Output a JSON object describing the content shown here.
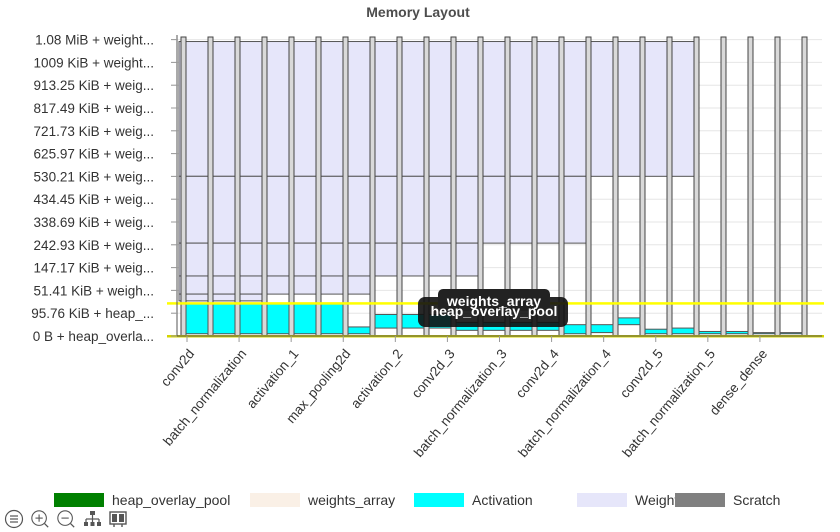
{
  "chart_data": {
    "type": "bar",
    "title": "Memory Layout",
    "y_tick_labels": [
      "0 B + heap_overla...",
      "95.76 KiB + heap_...",
      "51.41 KiB + weigh...",
      "147.17 KiB + weig...",
      "242.93 KiB + weig...",
      "338.69 KiB + weig...",
      "434.45 KiB + weig...",
      "530.21 KiB + weig...",
      "625.97 KiB + weig...",
      "721.73 KiB + weig...",
      "817.49 KiB + weig...",
      "913.25 KiB + weig...",
      "1009 KiB + weight...",
      "1.08 MiB + weight..."
    ],
    "x_tick_labels": [
      "conv2d",
      "batch_normalization",
      "activation_1",
      "max_pooling2d",
      "activation_2",
      "conv2d_3",
      "batch_normalization_3",
      "conv2d_4",
      "batch_normalization_4",
      "conv2d_5",
      "batch_normalization_5",
      "dense_dense"
    ],
    "ylim": [
      0,
      13.2
    ],
    "legend_position": "bottom",
    "series": [
      {
        "name": "heap_overlay_pool",
        "color": "#008000"
      },
      {
        "name": "weights_array",
        "color": "#faf0e6"
      },
      {
        "name": "Activation",
        "color": "#00ffff"
      },
      {
        "name": "Weights",
        "color": "#e6e6fa"
      },
      {
        "name": "Scratch",
        "color": "#808080"
      }
    ],
    "weights_blocks": [
      {
        "from": 0,
        "to": 9,
        "y0": 7.05,
        "y1": 13.0
      },
      {
        "from": 0,
        "to": 7,
        "y0": 4.1,
        "y1": 7.05
      },
      {
        "from": 0,
        "to": 5,
        "y0": 2.65,
        "y1": 4.1
      },
      {
        "from": 0,
        "to": 3,
        "y0": 1.85,
        "y1": 2.65
      },
      {
        "from": 0,
        "to": 1,
        "y0": 1.55,
        "y1": 1.85
      }
    ],
    "activation_bars": [
      {
        "index": 0,
        "y0": 0.1,
        "y1": 1.45
      },
      {
        "index": 1,
        "y0": 0.1,
        "y1": 1.45
      },
      {
        "index": 2,
        "y0": 0.1,
        "y1": 1.45
      },
      {
        "index": 3,
        "y0": 0.1,
        "y1": 1.45
      },
      {
        "index": 4,
        "y0": 0.1,
        "y1": 1.45
      },
      {
        "index": 5,
        "y0": 0.1,
        "y1": 1.45
      },
      {
        "index": 6,
        "y0": 0.1,
        "y1": 0.4
      },
      {
        "index": 7,
        "y0": 0.35,
        "y1": 0.95
      },
      {
        "index": 8,
        "y0": 0.35,
        "y1": 0.95
      },
      {
        "index": 9,
        "y0": 0.35,
        "y1": 0.95
      },
      {
        "index": 10,
        "y0": 0.25,
        "y1": 0.6
      },
      {
        "index": 11,
        "y0": 0.25,
        "y1": 0.6
      },
      {
        "index": 12,
        "y0": 0.25,
        "y1": 0.6
      },
      {
        "index": 13,
        "y0": 0.25,
        "y1": 0.6
      },
      {
        "index": 14,
        "y0": 0.1,
        "y1": 0.5
      },
      {
        "index": 15,
        "y0": 0.15,
        "y1": 0.5
      },
      {
        "index": 16,
        "y0": 0.5,
        "y1": 0.8
      },
      {
        "index": 17,
        "y0": 0.1,
        "y1": 0.3
      },
      {
        "index": 18,
        "y0": 0.1,
        "y1": 0.35
      },
      {
        "index": 19,
        "y0": 0.1,
        "y1": 0.2
      },
      {
        "index": 20,
        "y0": 0.1,
        "y1": 0.2
      },
      {
        "index": 21,
        "y0": 0.1,
        "y1": 0.15
      },
      {
        "index": 22,
        "y0": 0.1,
        "y1": 0.15
      }
    ],
    "scratch_columns": 23,
    "tooltip": {
      "series": "weights_array",
      "label": "heap_overlay_pool"
    }
  },
  "toolbar": {
    "items": [
      "list-icon",
      "zoom-in-icon",
      "zoom-out-icon",
      "tree-icon",
      "layout-icon"
    ]
  }
}
